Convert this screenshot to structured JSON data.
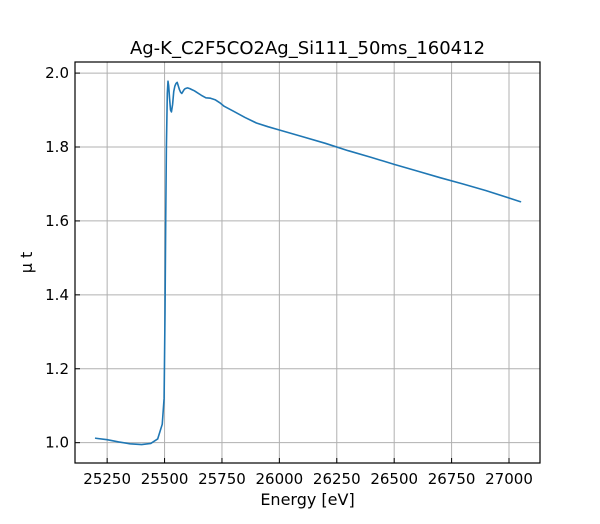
{
  "chart_data": {
    "type": "line",
    "title": "Ag-K_C2F5CO2Ag_Si111_50ms_160412",
    "xlabel": "Energy [eV]",
    "ylabel": "μ t",
    "xlim": [
      25110,
      27135
    ],
    "ylim": [
      0.945,
      2.03
    ],
    "xticks": [
      25250,
      25500,
      25750,
      26000,
      26250,
      26500,
      26750,
      27000
    ],
    "xtick_labels": [
      "25250",
      "25500",
      "25750",
      "26000",
      "26250",
      "26500",
      "26750",
      "27000"
    ],
    "yticks": [
      1.0,
      1.2,
      1.4,
      1.6,
      1.8,
      2.0
    ],
    "ytick_labels": [
      "1.0",
      "1.2",
      "1.4",
      "1.6",
      "1.8",
      "2.0"
    ],
    "grid": true,
    "ticks_direction": "in",
    "series": [
      {
        "color": "#1f77b4",
        "x": [
          25200,
          25250,
          25300,
          25350,
          25400,
          25440,
          25470,
          25490,
          25498,
          25502,
          25505,
          25508,
          25512,
          25515,
          25518,
          25522,
          25526,
          25530,
          25535,
          25540,
          25545,
          25550,
          25555,
          25560,
          25565,
          25570,
          25575,
          25580,
          25585,
          25590,
          25600,
          25610,
          25620,
          25630,
          25640,
          25660,
          25680,
          25700,
          25720,
          25740,
          25760,
          25800,
          25850,
          25900,
          25950,
          26000,
          26100,
          26200,
          26300,
          26400,
          26500,
          26600,
          26700,
          26800,
          26900,
          27000,
          27050
        ],
        "y": [
          1.012,
          1.008,
          1.002,
          0.997,
          0.995,
          0.998,
          1.01,
          1.05,
          1.12,
          1.35,
          1.6,
          1.8,
          1.945,
          1.978,
          1.965,
          1.93,
          1.9,
          1.895,
          1.915,
          1.95,
          1.965,
          1.972,
          1.975,
          1.965,
          1.955,
          1.948,
          1.945,
          1.95,
          1.955,
          1.958,
          1.96,
          1.958,
          1.955,
          1.952,
          1.948,
          1.94,
          1.933,
          1.932,
          1.928,
          1.92,
          1.91,
          1.897,
          1.88,
          1.865,
          1.855,
          1.846,
          1.828,
          1.81,
          1.79,
          1.772,
          1.753,
          1.735,
          1.717,
          1.7,
          1.682,
          1.662,
          1.652
        ]
      }
    ]
  }
}
